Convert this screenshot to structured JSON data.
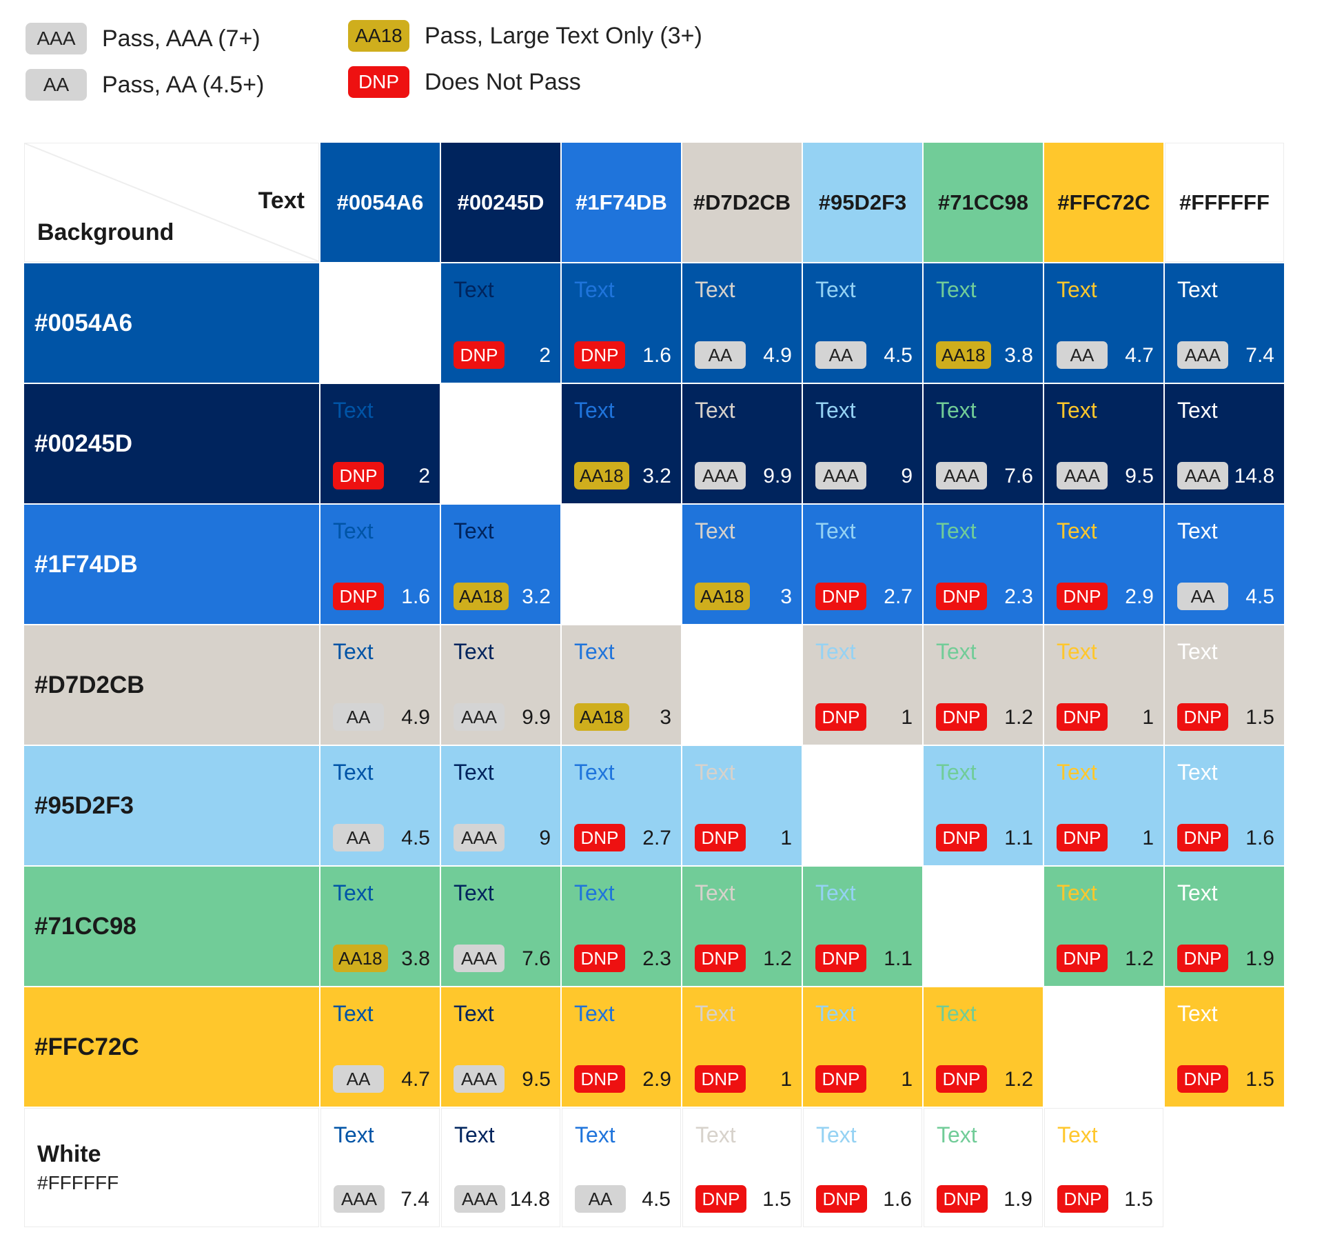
{
  "legend": [
    {
      "level": "AAA",
      "description": "Pass, AAA (7+)"
    },
    {
      "level": "AA",
      "description": "Pass, AA (4.5+)"
    },
    {
      "level": "AA18",
      "description": "Pass, Large Text Only (3+)"
    },
    {
      "level": "DNP",
      "description": "Does Not Pass"
    }
  ],
  "badge_styles": {
    "AAA": {
      "bg": "#d4d4d4",
      "fg": "#222222"
    },
    "AA": {
      "bg": "#d4d4d4",
      "fg": "#222222"
    },
    "AA18": {
      "bg": "#cfae1d",
      "fg": "#1a1a1a"
    },
    "DNP": {
      "bg": "#ee1111",
      "fg": "#ffffff"
    }
  },
  "corner": {
    "text_label": "Text",
    "background_label": "Background"
  },
  "sample_text": "Text",
  "colors": [
    {
      "hex": "#0054A6",
      "label": "#0054A6",
      "header_fg": "#ffffff"
    },
    {
      "hex": "#00245D",
      "label": "#00245D",
      "header_fg": "#ffffff"
    },
    {
      "hex": "#1F74DB",
      "label": "#1F74DB",
      "header_fg": "#ffffff"
    },
    {
      "hex": "#D7D2CB",
      "label": "#D7D2CB",
      "header_fg": "#1a1a1a"
    },
    {
      "hex": "#95D2F3",
      "label": "#95D2F3",
      "header_fg": "#1a1a1a"
    },
    {
      "hex": "#71CC98",
      "label": "#71CC98",
      "header_fg": "#1a1a1a"
    },
    {
      "hex": "#FFC72C",
      "label": "#FFC72C",
      "header_fg": "#1a1a1a"
    },
    {
      "hex": "#FFFFFF",
      "label": "#FFFFFF",
      "row_label": "White",
      "row_sublabel": "#FFFFFF",
      "header_fg": "#1a1a1a"
    }
  ],
  "matrix": [
    [
      null,
      {
        "level": "DNP",
        "ratio": "2"
      },
      {
        "level": "DNP",
        "ratio": "1.6"
      },
      {
        "level": "AA",
        "ratio": "4.9"
      },
      {
        "level": "AA",
        "ratio": "4.5"
      },
      {
        "level": "AA18",
        "ratio": "3.8"
      },
      {
        "level": "AA",
        "ratio": "4.7"
      },
      {
        "level": "AAA",
        "ratio": "7.4"
      }
    ],
    [
      {
        "level": "DNP",
        "ratio": "2"
      },
      null,
      {
        "level": "AA18",
        "ratio": "3.2"
      },
      {
        "level": "AAA",
        "ratio": "9.9"
      },
      {
        "level": "AAA",
        "ratio": "9"
      },
      {
        "level": "AAA",
        "ratio": "7.6"
      },
      {
        "level": "AAA",
        "ratio": "9.5"
      },
      {
        "level": "AAA",
        "ratio": "14.8"
      }
    ],
    [
      {
        "level": "DNP",
        "ratio": "1.6"
      },
      {
        "level": "AA18",
        "ratio": "3.2"
      },
      null,
      {
        "level": "AA18",
        "ratio": "3"
      },
      {
        "level": "DNP",
        "ratio": "2.7"
      },
      {
        "level": "DNP",
        "ratio": "2.3"
      },
      {
        "level": "DNP",
        "ratio": "2.9"
      },
      {
        "level": "AA",
        "ratio": "4.5"
      }
    ],
    [
      {
        "level": "AA",
        "ratio": "4.9"
      },
      {
        "level": "AAA",
        "ratio": "9.9"
      },
      {
        "level": "AA18",
        "ratio": "3"
      },
      null,
      {
        "level": "DNP",
        "ratio": "1"
      },
      {
        "level": "DNP",
        "ratio": "1.2"
      },
      {
        "level": "DNP",
        "ratio": "1"
      },
      {
        "level": "DNP",
        "ratio": "1.5"
      }
    ],
    [
      {
        "level": "AA",
        "ratio": "4.5"
      },
      {
        "level": "AAA",
        "ratio": "9"
      },
      {
        "level": "DNP",
        "ratio": "2.7"
      },
      {
        "level": "DNP",
        "ratio": "1"
      },
      null,
      {
        "level": "DNP",
        "ratio": "1.1"
      },
      {
        "level": "DNP",
        "ratio": "1"
      },
      {
        "level": "DNP",
        "ratio": "1.6"
      }
    ],
    [
      {
        "level": "AA18",
        "ratio": "3.8"
      },
      {
        "level": "AAA",
        "ratio": "7.6"
      },
      {
        "level": "DNP",
        "ratio": "2.3"
      },
      {
        "level": "DNP",
        "ratio": "1.2"
      },
      {
        "level": "DNP",
        "ratio": "1.1"
      },
      null,
      {
        "level": "DNP",
        "ratio": "1.2"
      },
      {
        "level": "DNP",
        "ratio": "1.9"
      }
    ],
    [
      {
        "level": "AA",
        "ratio": "4.7"
      },
      {
        "level": "AAA",
        "ratio": "9.5"
      },
      {
        "level": "DNP",
        "ratio": "2.9"
      },
      {
        "level": "DNP",
        "ratio": "1"
      },
      {
        "level": "DNP",
        "ratio": "1"
      },
      {
        "level": "DNP",
        "ratio": "1.2"
      },
      null,
      {
        "level": "DNP",
        "ratio": "1.5"
      }
    ],
    [
      {
        "level": "AAA",
        "ratio": "7.4"
      },
      {
        "level": "AAA",
        "ratio": "14.8"
      },
      {
        "level": "AA",
        "ratio": "4.5"
      },
      {
        "level": "DNP",
        "ratio": "1.5"
      },
      {
        "level": "DNP",
        "ratio": "1.6"
      },
      {
        "level": "DNP",
        "ratio": "1.9"
      },
      {
        "level": "DNP",
        "ratio": "1.5"
      },
      null
    ]
  ]
}
